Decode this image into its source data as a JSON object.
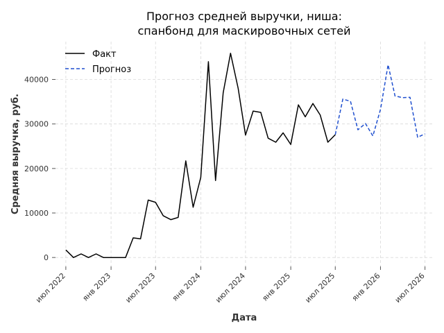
{
  "chart_data": {
    "type": "line",
    "title_lines": [
      "Прогноз средней выручки, ниша:",
      "спанбонд для маскировочных сетей"
    ],
    "xlabel": "Дата",
    "ylabel": "Средняя выручка, руб.",
    "x_ticks": [
      "июл 2022",
      "янв 2023",
      "июл 2023",
      "янв 2024",
      "июл 2024",
      "янв 2025",
      "июл 2025",
      "янв 2026",
      "июл 2026"
    ],
    "y_ticks": [
      0,
      10000,
      20000,
      30000,
      40000
    ],
    "ylim": [
      -2000,
      48500
    ],
    "xlim": [
      "2022-05-20",
      "2026-08-05"
    ],
    "grid": true,
    "legend_position": "top-left",
    "series": [
      {
        "name": "Факт",
        "color": "#000000",
        "style": "solid",
        "x": [
          "2022-07",
          "2022-08",
          "2022-09",
          "2022-10",
          "2022-11",
          "2022-12",
          "2023-01",
          "2023-02",
          "2023-03",
          "2023-04",
          "2023-05",
          "2023-06",
          "2023-07",
          "2023-08",
          "2023-09",
          "2023-10",
          "2023-11",
          "2023-12",
          "2024-01",
          "2024-02",
          "2024-03",
          "2024-04",
          "2024-05",
          "2024-06",
          "2024-07",
          "2024-08",
          "2024-09",
          "2024-10",
          "2024-11",
          "2024-12",
          "2025-01",
          "2025-02",
          "2025-03",
          "2025-04",
          "2025-05",
          "2025-06",
          "2025-07"
        ],
        "y": [
          1700,
          0,
          800,
          0,
          800,
          0,
          0,
          0,
          0,
          4400,
          4200,
          12900,
          12400,
          9400,
          8500,
          9000,
          21700,
          11300,
          18000,
          44000,
          17300,
          37000,
          45900,
          38000,
          27500,
          32900,
          32600,
          26800,
          25900,
          28000,
          25400,
          34300,
          31600,
          34600,
          32000,
          25900,
          27600
        ]
      },
      {
        "name": "Прогноз",
        "color": "#1f4fcf",
        "style": "dashed",
        "x": [
          "2025-07",
          "2025-08",
          "2025-09",
          "2025-10",
          "2025-11",
          "2025-12",
          "2026-01",
          "2026-02",
          "2026-03",
          "2026-04",
          "2026-05",
          "2026-06",
          "2026-07"
        ],
        "y": [
          27600,
          35600,
          35100,
          28700,
          30100,
          27300,
          33300,
          43300,
          36300,
          35900,
          36000,
          27000,
          27800
        ]
      }
    ]
  }
}
